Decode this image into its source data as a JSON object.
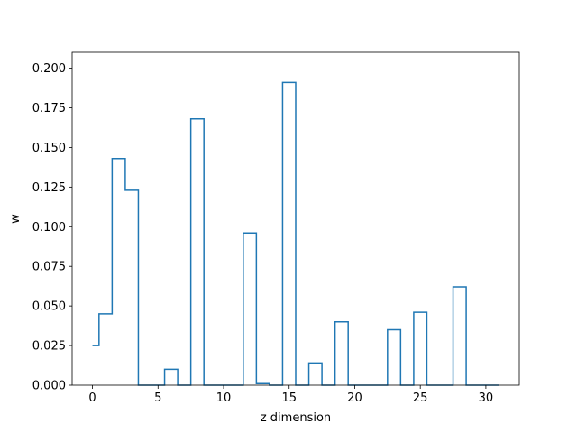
{
  "chart_data": {
    "type": "line",
    "style": "step",
    "xlabel": "z dimension",
    "ylabel": "w",
    "xlim": [
      -1.55,
      32.55
    ],
    "ylim": [
      0,
      0.21
    ],
    "xticks": [
      0,
      5,
      10,
      15,
      20,
      25,
      30
    ],
    "xtick_labels": [
      "0",
      "5",
      "10",
      "15",
      "20",
      "25",
      "30"
    ],
    "yticks": [
      0,
      0.025,
      0.05,
      0.075,
      0.1,
      0.125,
      0.15,
      0.175,
      0.2
    ],
    "ytick_labels": [
      "0.000",
      "0.025",
      "0.050",
      "0.075",
      "0.100",
      "0.125",
      "0.150",
      "0.175",
      "0.200"
    ],
    "grid": false,
    "line_color": "#1f77b4",
    "series": [
      {
        "x": [
          0,
          1,
          2,
          3,
          4,
          5,
          6,
          7,
          8,
          9,
          10,
          11,
          12,
          13,
          14,
          15,
          16,
          17,
          18,
          19,
          20,
          21,
          22,
          23,
          24,
          25,
          26,
          27,
          28,
          29,
          30,
          31
        ],
        "values": [
          0.025,
          0.045,
          0.143,
          0.123,
          0,
          0,
          0.01,
          0,
          0.168,
          0,
          0,
          0,
          0.096,
          0.001,
          0,
          0.191,
          0,
          0.014,
          0,
          0.04,
          0,
          0,
          0,
          0.035,
          0,
          0.046,
          0,
          0,
          0.062,
          0,
          0,
          0
        ]
      }
    ]
  }
}
